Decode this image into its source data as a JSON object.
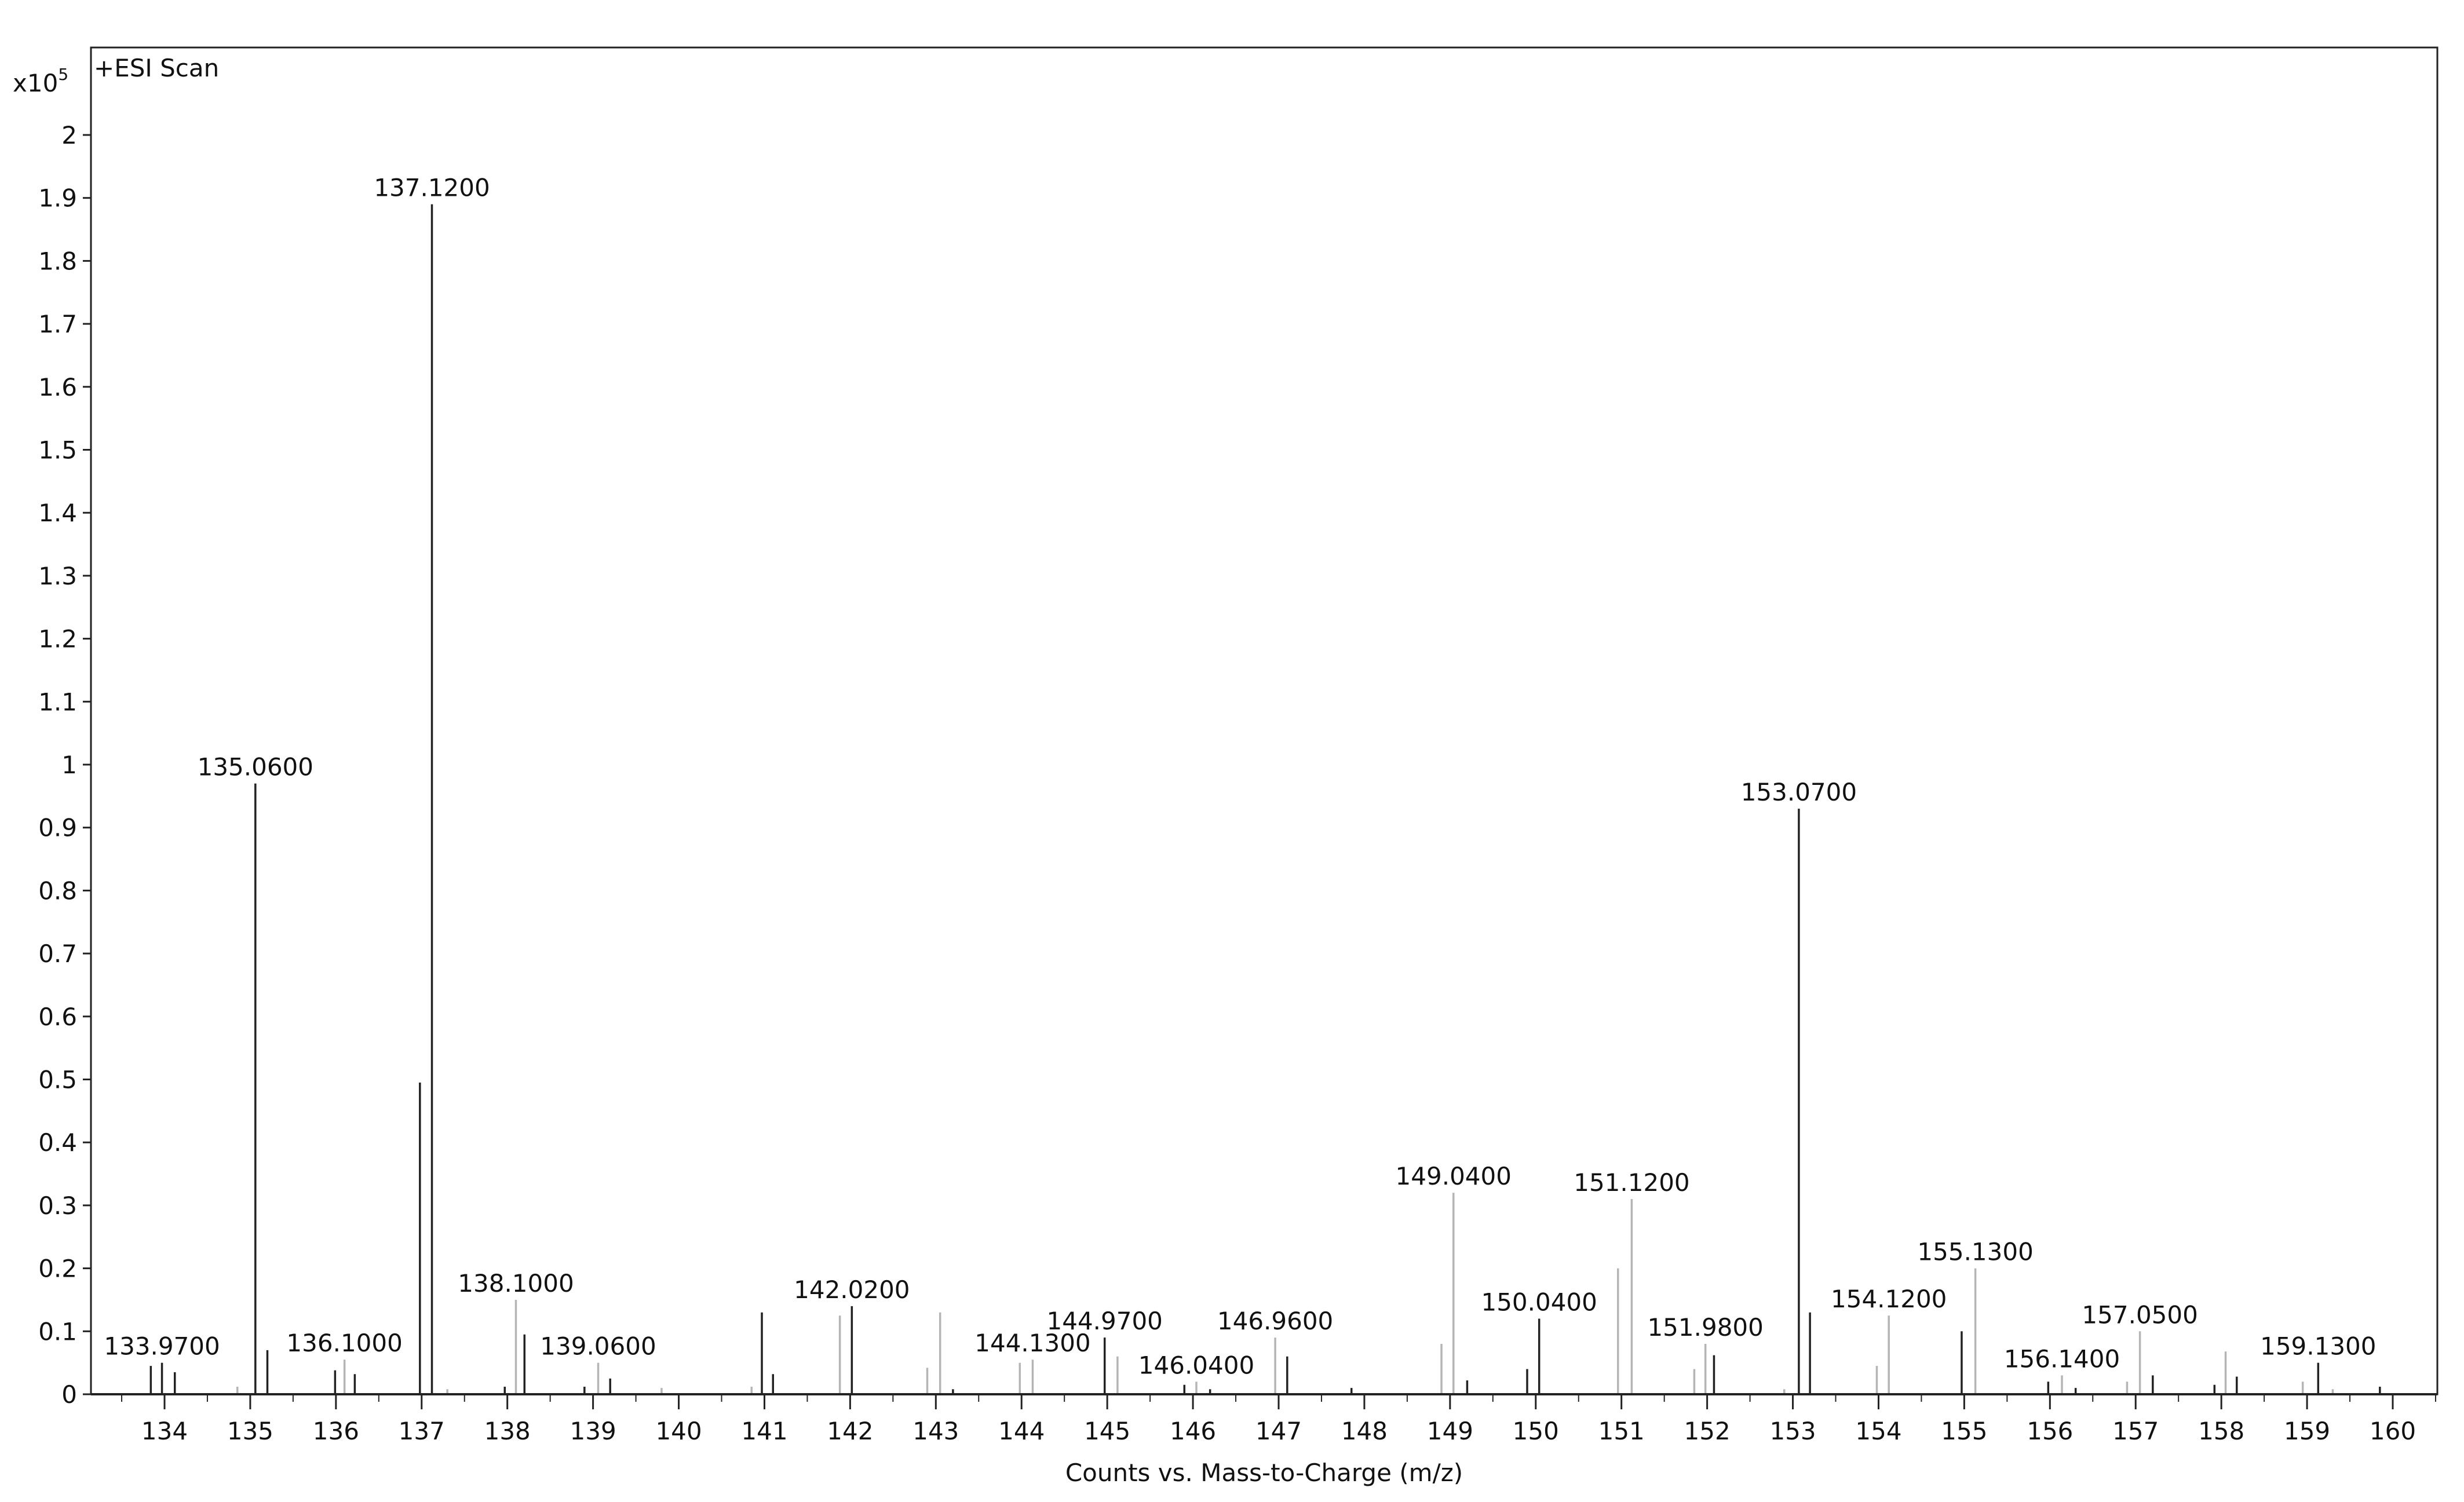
{
  "chart_data": {
    "type": "bar",
    "title": "+ESI Scan",
    "xlabel": "Counts vs. Mass-to-Charge (m/z)",
    "ylabel": "",
    "y_multiplier_label": "x10",
    "y_multiplier_exponent": "5",
    "xlim": [
      133.2,
      160.6
    ],
    "ylim": [
      0,
      2.1
    ],
    "x_ticks": [
      134,
      135,
      136,
      137,
      138,
      139,
      140,
      141,
      142,
      143,
      144,
      145,
      146,
      147,
      148,
      149,
      150,
      151,
      152,
      153,
      154,
      155,
      156,
      157,
      158,
      159,
      160
    ],
    "y_ticks": [
      {
        "value": 0,
        "label": "0"
      },
      {
        "value": 0.1,
        "label": "0.1"
      },
      {
        "value": 0.2,
        "label": "0.2"
      },
      {
        "value": 0.3,
        "label": "0.3"
      },
      {
        "value": 0.4,
        "label": "0.4"
      },
      {
        "value": 0.5,
        "label": "0.5"
      },
      {
        "value": 0.6,
        "label": "0.6"
      },
      {
        "value": 0.7,
        "label": "0.7"
      },
      {
        "value": 0.8,
        "label": "0.8"
      },
      {
        "value": 0.9,
        "label": "0.9"
      },
      {
        "value": 1.0,
        "label": "1"
      },
      {
        "value": 1.1,
        "label": "1.1"
      },
      {
        "value": 1.2,
        "label": "1.2"
      },
      {
        "value": 1.3,
        "label": "1.3"
      },
      {
        "value": 1.4,
        "label": "1.4"
      },
      {
        "value": 1.5,
        "label": "1.5"
      },
      {
        "value": 1.6,
        "label": "1.6"
      },
      {
        "value": 1.7,
        "label": "1.7"
      },
      {
        "value": 1.8,
        "label": "1.8"
      },
      {
        "value": 1.9,
        "label": "1.9"
      },
      {
        "value": 2.0,
        "label": "2"
      }
    ],
    "grid": false,
    "colors": {
      "major": "#222222",
      "minor": "#b5b5b5",
      "axis": "#222222"
    },
    "peaks": [
      {
        "mz": 133.84,
        "i": 0.045,
        "c": "d"
      },
      {
        "mz": 133.97,
        "i": 0.05,
        "c": "d",
        "label": "133.9700"
      },
      {
        "mz": 134.12,
        "i": 0.035,
        "c": "d"
      },
      {
        "mz": 134.85,
        "i": 0.012,
        "c": "l"
      },
      {
        "mz": 135.06,
        "i": 0.97,
        "c": "d",
        "label": "135.0600"
      },
      {
        "mz": 135.2,
        "i": 0.07,
        "c": "d"
      },
      {
        "mz": 135.99,
        "i": 0.038,
        "c": "d"
      },
      {
        "mz": 136.1,
        "i": 0.055,
        "c": "l",
        "label": "136.1000"
      },
      {
        "mz": 136.22,
        "i": 0.032,
        "c": "d"
      },
      {
        "mz": 136.98,
        "i": 0.495,
        "c": "d"
      },
      {
        "mz": 137.12,
        "i": 1.89,
        "c": "d",
        "label": "137.1200"
      },
      {
        "mz": 137.3,
        "i": 0.008,
        "c": "l"
      },
      {
        "mz": 137.97,
        "i": 0.012,
        "c": "d"
      },
      {
        "mz": 138.1,
        "i": 0.15,
        "c": "l",
        "label": "138.1000"
      },
      {
        "mz": 138.2,
        "i": 0.095,
        "c": "d"
      },
      {
        "mz": 138.9,
        "i": 0.012,
        "c": "d"
      },
      {
        "mz": 139.06,
        "i": 0.05,
        "c": "l",
        "label": "139.0600"
      },
      {
        "mz": 139.2,
        "i": 0.025,
        "c": "d"
      },
      {
        "mz": 139.8,
        "i": 0.01,
        "c": "l"
      },
      {
        "mz": 140.85,
        "i": 0.012,
        "c": "l"
      },
      {
        "mz": 140.97,
        "i": 0.13,
        "c": "d"
      },
      {
        "mz": 141.1,
        "i": 0.032,
        "c": "d"
      },
      {
        "mz": 141.88,
        "i": 0.125,
        "c": "l"
      },
      {
        "mz": 142.02,
        "i": 0.14,
        "c": "d",
        "label": "142.0200"
      },
      {
        "mz": 142.9,
        "i": 0.042,
        "c": "l"
      },
      {
        "mz": 143.05,
        "i": 0.13,
        "c": "l"
      },
      {
        "mz": 143.2,
        "i": 0.008,
        "c": "d"
      },
      {
        "mz": 143.98,
        "i": 0.05,
        "c": "l"
      },
      {
        "mz": 144.13,
        "i": 0.055,
        "c": "l",
        "label": "144.1300"
      },
      {
        "mz": 144.97,
        "i": 0.09,
        "c": "d",
        "label": "144.9700"
      },
      {
        "mz": 145.12,
        "i": 0.06,
        "c": "l"
      },
      {
        "mz": 145.9,
        "i": 0.015,
        "c": "d"
      },
      {
        "mz": 146.04,
        "i": 0.02,
        "c": "l",
        "label": "146.0400"
      },
      {
        "mz": 146.2,
        "i": 0.008,
        "c": "d"
      },
      {
        "mz": 146.96,
        "i": 0.09,
        "c": "l",
        "label": "146.9600"
      },
      {
        "mz": 147.1,
        "i": 0.06,
        "c": "d"
      },
      {
        "mz": 147.85,
        "i": 0.01,
        "c": "d"
      },
      {
        "mz": 148.9,
        "i": 0.08,
        "c": "l"
      },
      {
        "mz": 149.04,
        "i": 0.32,
        "c": "l",
        "label": "149.0400"
      },
      {
        "mz": 149.2,
        "i": 0.022,
        "c": "d"
      },
      {
        "mz": 149.9,
        "i": 0.04,
        "c": "d"
      },
      {
        "mz": 150.04,
        "i": 0.12,
        "c": "d",
        "label": "150.0400"
      },
      {
        "mz": 150.96,
        "i": 0.2,
        "c": "l"
      },
      {
        "mz": 151.12,
        "i": 0.31,
        "c": "l",
        "label": "151.1200"
      },
      {
        "mz": 151.85,
        "i": 0.04,
        "c": "l"
      },
      {
        "mz": 151.98,
        "i": 0.08,
        "c": "l",
        "label": "151.9800"
      },
      {
        "mz": 152.08,
        "i": 0.062,
        "c": "d"
      },
      {
        "mz": 152.9,
        "i": 0.008,
        "c": "l"
      },
      {
        "mz": 153.07,
        "i": 0.93,
        "c": "d",
        "label": "153.0700"
      },
      {
        "mz": 153.2,
        "i": 0.13,
        "c": "d"
      },
      {
        "mz": 153.98,
        "i": 0.045,
        "c": "l"
      },
      {
        "mz": 154.12,
        "i": 0.125,
        "c": "l",
        "label": "154.1200"
      },
      {
        "mz": 154.97,
        "i": 0.1,
        "c": "d"
      },
      {
        "mz": 155.13,
        "i": 0.2,
        "c": "l",
        "label": "155.1300"
      },
      {
        "mz": 155.98,
        "i": 0.02,
        "c": "d"
      },
      {
        "mz": 156.14,
        "i": 0.03,
        "c": "l",
        "label": "156.1400"
      },
      {
        "mz": 156.3,
        "i": 0.01,
        "c": "d"
      },
      {
        "mz": 156.9,
        "i": 0.02,
        "c": "l"
      },
      {
        "mz": 157.05,
        "i": 0.1,
        "c": "l",
        "label": "157.0500"
      },
      {
        "mz": 157.2,
        "i": 0.03,
        "c": "d"
      },
      {
        "mz": 157.92,
        "i": 0.015,
        "c": "d"
      },
      {
        "mz": 158.05,
        "i": 0.068,
        "c": "l"
      },
      {
        "mz": 158.18,
        "i": 0.028,
        "c": "d"
      },
      {
        "mz": 158.95,
        "i": 0.02,
        "c": "l"
      },
      {
        "mz": 159.13,
        "i": 0.05,
        "c": "d",
        "label": "159.1300"
      },
      {
        "mz": 159.3,
        "i": 0.008,
        "c": "l"
      },
      {
        "mz": 159.85,
        "i": 0.012,
        "c": "d"
      }
    ]
  }
}
